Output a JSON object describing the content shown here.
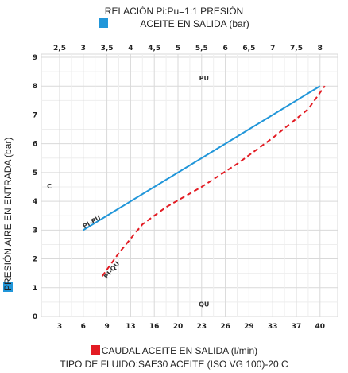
{
  "titles": {
    "top_line1": "RELACIÓN Pi:Pu=1:1 PRESIÓN",
    "top_line2": "ACEITE EN SALIDA (bar)",
    "y_axis": "PRESIÓN AIRE EN ENTRADA (bar)",
    "bottom_line1": "CAUDAL ACEITE EN SALIDA (l/min)",
    "bottom_line2": "TIPO DE FLUIDO:SAE30 ACEITE (ISO VG 100)-20 C"
  },
  "colors": {
    "blue": "#2196d9",
    "red": "#e31b23"
  },
  "inner_labels": {
    "pu": "PU",
    "qu": "QU",
    "c": "C"
  },
  "chart_data": {
    "type": "line",
    "xlabel": "CAUDAL ACEITE EN SALIDA (l/min)",
    "ylabel": "PRESIÓN AIRE EN ENTRADA (bar)",
    "x2label": "ACEITE EN SALIDA (bar)",
    "ylim": [
      0,
      9
    ],
    "grid": true,
    "y_ticks": [
      "0",
      "1",
      "2",
      "3",
      "4",
      "5",
      "6",
      "7",
      "8",
      "9"
    ],
    "x_ticks": [
      "3",
      "6",
      "9",
      "13",
      "16",
      "20",
      "23",
      "26",
      "29",
      "33",
      "37",
      "40"
    ],
    "x2_ticks": [
      "2,5",
      "3",
      "3,5",
      "4",
      "4,5",
      "5",
      "5,5",
      "6",
      "6,5",
      "7",
      "7,5",
      "8"
    ],
    "series": [
      {
        "name": "PI-PU",
        "style": "solid",
        "color": "blue",
        "x_tick_pos": [
          1,
          11
        ],
        "y": [
          3.0,
          8.0
        ]
      },
      {
        "name": "PI-QU",
        "style": "dashed",
        "color": "red",
        "x_tick_pos": [
          1.8,
          2.5,
          3.5,
          4.5,
          6,
          7.5,
          9,
          10.5,
          11.2
        ],
        "y": [
          1.4,
          2.2,
          3.2,
          3.8,
          4.5,
          5.3,
          6.2,
          7.2,
          8.0
        ]
      }
    ]
  }
}
